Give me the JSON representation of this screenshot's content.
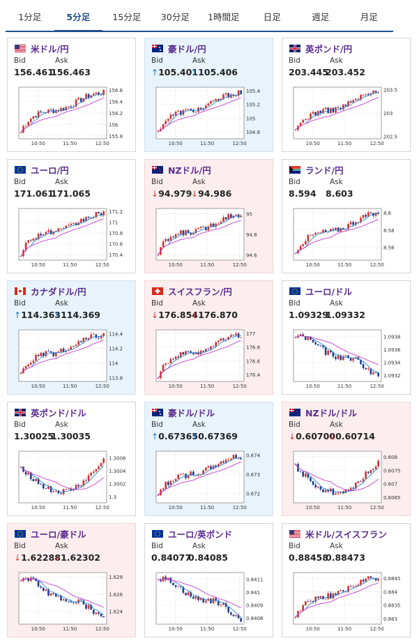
{
  "tabs": [
    {
      "label": "1分足"
    },
    {
      "label": "5分足"
    },
    {
      "label": "15分足"
    },
    {
      "label": "30分足"
    },
    {
      "label": "1時間足"
    },
    {
      "label": "日足"
    },
    {
      "label": "週足"
    },
    {
      "label": "月足"
    }
  ],
  "active_tab": 1,
  "labels": {
    "bid": "Bid",
    "ask": "Ask"
  },
  "colors": {
    "title": "#5a2a90",
    "up_arrow": "#1a73c8",
    "down_arrow": "#d23b3b",
    "candle_up": "#d0312d",
    "candle_down": "#1f3c8f",
    "sma_short": "#2a86d4",
    "sma_long": "#c33ad3"
  },
  "cards": [
    {
      "pair": "米ドル/円",
      "flag": "us",
      "bid": "156.461",
      "ask": "156.463",
      "trend": "",
      "shape": "up",
      "chart_data": {
        "type": "candlestick",
        "x_ticks": [
          "10:50",
          "11:50",
          "12:50"
        ],
        "y_ticks": [
          "156.6",
          "156.4",
          "156.2",
          "156",
          "155.8"
        ],
        "ylim": [
          155.75,
          156.65
        ]
      }
    },
    {
      "pair": "豪ドル/円",
      "flag": "au",
      "bid": "105.401",
      "ask": "105.406",
      "trend": "up",
      "shape": "up",
      "chart_data": {
        "type": "candlestick",
        "x_ticks": [
          "10:50",
          "11:50",
          "12:50"
        ],
        "y_ticks": [
          "105.4",
          "105.2",
          "105",
          "104.8"
        ],
        "ylim": [
          104.7,
          105.45
        ]
      }
    },
    {
      "pair": "英ポンド/円",
      "flag": "gb",
      "bid": "203.445",
      "ask": "203.452",
      "trend": "",
      "shape": "up",
      "chart_data": {
        "type": "candlestick",
        "x_ticks": [
          "10:50",
          "11:50",
          "12:50"
        ],
        "y_ticks": [
          "203.5",
          "203",
          "202.5"
        ],
        "ylim": [
          202.45,
          203.55
        ]
      }
    },
    {
      "pair": "ユーロ/円",
      "flag": "eu",
      "bid": "171.061",
      "ask": "171.065",
      "trend": "",
      "shape": "up",
      "chart_data": {
        "type": "candlestick",
        "x_ticks": [
          "10:50",
          "11:50",
          "12:50"
        ],
        "y_ticks": [
          "171.2",
          "171",
          "170.8",
          "170.6",
          "170.4"
        ],
        "ylim": [
          170.3,
          171.25
        ]
      }
    },
    {
      "pair": "NZドル/円",
      "flag": "nz",
      "bid": "94.979",
      "ask": "94.986",
      "trend": "down",
      "shape": "up",
      "chart_data": {
        "type": "candlestick",
        "x_ticks": [
          "10:50",
          "11:50",
          "12:50"
        ],
        "y_ticks": [
          "95",
          "94.8",
          "94.6"
        ],
        "ylim": [
          94.55,
          95.05
        ]
      }
    },
    {
      "pair": "ランド/円",
      "flag": "za",
      "bid": "8.594",
      "ask": "8.603",
      "trend": "",
      "shape": "up",
      "chart_data": {
        "type": "candlestick",
        "x_ticks": [
          "10:50",
          "11:50",
          "12:50"
        ],
        "y_ticks": [
          "8.6",
          "8.58",
          "8.56"
        ],
        "ylim": [
          8.545,
          8.605
        ]
      }
    },
    {
      "pair": "カナダドル/円",
      "flag": "ca",
      "bid": "114.363",
      "ask": "114.369",
      "trend": "up",
      "shape": "up",
      "chart_data": {
        "type": "candlestick",
        "x_ticks": [
          "10:50",
          "11:50",
          "12:50"
        ],
        "y_ticks": [
          "114.4",
          "114.2",
          "114",
          "113.8"
        ],
        "ylim": [
          113.75,
          114.45
        ]
      }
    },
    {
      "pair": "スイスフラン/円",
      "flag": "ch",
      "bid": "176.854",
      "ask": "176.870",
      "trend": "down",
      "shape": "up",
      "chart_data": {
        "type": "candlestick",
        "x_ticks": [
          "10:50",
          "11:50",
          "12:50"
        ],
        "y_ticks": [
          "177",
          "176.8",
          "176.6",
          "176.4"
        ],
        "ylim": [
          176.3,
          177.05
        ]
      }
    },
    {
      "pair": "ユーロ/ドル",
      "flag": "eu",
      "bid": "1.09329",
      "ask": "1.09332",
      "trend": "",
      "shape": "down",
      "chart_data": {
        "type": "candlestick",
        "x_ticks": [
          "10:50",
          "11:50",
          "12:50"
        ],
        "y_ticks": [
          "1.0938",
          "1.0936",
          "1.0934",
          "1.0932"
        ],
        "ylim": [
          1.0931,
          1.0939
        ]
      }
    },
    {
      "pair": "英ポンド/ドル",
      "flag": "gb",
      "bid": "1.30025",
      "ask": "1.30035",
      "trend": "",
      "shape": "vdip",
      "chart_data": {
        "type": "candlestick",
        "x_ticks": [
          "10:50",
          "11:50",
          "12:50"
        ],
        "y_ticks": [
          "1.3006",
          "1.3004",
          "1.3002",
          "1.3"
        ],
        "ylim": [
          1.2999,
          1.3007
        ]
      }
    },
    {
      "pair": "豪ドル/ドル",
      "flag": "au",
      "bid": "0.67365",
      "ask": "0.67369",
      "trend": "up",
      "shape": "up",
      "chart_data": {
        "type": "candlestick",
        "x_ticks": [
          "10:50",
          "11:50",
          "12:50"
        ],
        "y_ticks": [
          "0.674",
          "0.673",
          "0.672"
        ],
        "ylim": [
          0.6715,
          0.6742
        ]
      }
    },
    {
      "pair": "NZドル/ドル",
      "flag": "nz",
      "bid": "0.60700",
      "ask": "0.60714",
      "trend": "down",
      "shape": "vdip",
      "chart_data": {
        "type": "candlestick",
        "x_ticks": [
          "10:50",
          "11:50",
          "12:50"
        ],
        "y_ticks": [
          "0.608",
          "0.6075",
          "0.607",
          "0.6065"
        ],
        "ylim": [
          0.6063,
          0.6082
        ]
      }
    },
    {
      "pair": "ユーロ/豪ドル",
      "flag": "eu",
      "bid": "1.62288",
      "ask": "1.62302",
      "trend": "down",
      "shape": "down",
      "chart_data": {
        "type": "candlestick",
        "x_ticks": [
          "10:50",
          "11:50",
          "12:50"
        ],
        "y_ticks": [
          "1.628",
          "1.626",
          "1.624"
        ],
        "ylim": [
          1.6225,
          1.6285
        ]
      }
    },
    {
      "pair": "ユーロ/英ポンド",
      "flag": "eu",
      "bid": "0.84077",
      "ask": "0.84085",
      "trend": "",
      "shape": "down",
      "chart_data": {
        "type": "candlestick",
        "x_ticks": [
          "10:50",
          "11:50",
          "12:50"
        ],
        "y_ticks": [
          "0.8411",
          "0.841",
          "0.8409",
          "0.8408"
        ],
        "ylim": [
          0.84075,
          0.84115
        ]
      }
    },
    {
      "pair": "米ドル/スイスフラン",
      "flag": "us",
      "bid": "0.88458",
      "ask": "0.88473",
      "trend": "",
      "shape": "up",
      "chart_data": {
        "type": "candlestick",
        "x_ticks": [
          "10:50",
          "11:50",
          "12:50"
        ],
        "y_ticks": [
          "0.8845",
          "0.884",
          "0.8835",
          "0.883"
        ],
        "ylim": [
          0.8828,
          0.8847
        ]
      }
    }
  ]
}
